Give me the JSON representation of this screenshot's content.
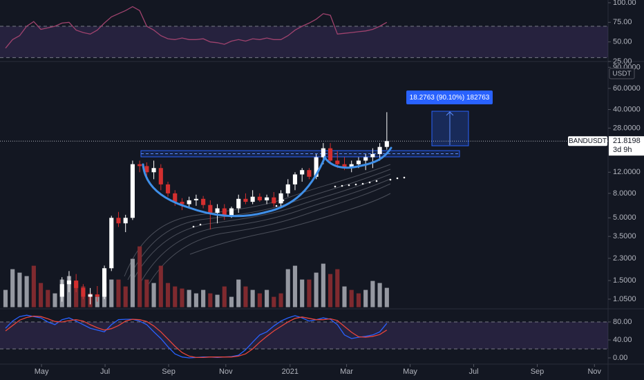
{
  "chart_data": [
    {
      "type": "line",
      "xlim": [
        -0.78,
        85.33
      ],
      "ylim": [
        25,
        103.5
      ],
      "log_scale": false,
      "yticks": [
        {
          "value": 100,
          "label": "100.00"
        },
        {
          "value": 75,
          "label": "75.00"
        },
        {
          "value": 50,
          "label": "50.00"
        },
        {
          "value": 25,
          "label": "25.00"
        }
      ],
      "bands": [
        30,
        70
      ],
      "band_color": "#7e57c2",
      "x": [
        0,
        1,
        2,
        3,
        4,
        5,
        6,
        7,
        8,
        9,
        10,
        11,
        12,
        13,
        14,
        15,
        16,
        17,
        18,
        19,
        20,
        21,
        22,
        23,
        24,
        25,
        26,
        27,
        28,
        29,
        30,
        31,
        32,
        33,
        34,
        35,
        36,
        37,
        38,
        39,
        40,
        41,
        42,
        43,
        44,
        45,
        46,
        47,
        48,
        49,
        50,
        51,
        52,
        53,
        54
      ],
      "series": [
        {
          "color": "#a0436e",
          "values": [
            42,
            53,
            58,
            70,
            76,
            66,
            68,
            70,
            74,
            75,
            65,
            62,
            60,
            65,
            74,
            82,
            86,
            90,
            95,
            90,
            70,
            65,
            58,
            54,
            53,
            55,
            53,
            53,
            54,
            50,
            49,
            47,
            51,
            53,
            51,
            54,
            53,
            55,
            53,
            53,
            58,
            65,
            70,
            74,
            79,
            86,
            84,
            60,
            61,
            62,
            63,
            64,
            66,
            70,
            75
          ]
        }
      ]
    },
    {
      "type": "candlestick",
      "xlim": [
        -0.78,
        85.33
      ],
      "ylim": [
        0.9,
        100
      ],
      "log_scale": true,
      "yticks": [
        {
          "value": 90,
          "label": "90.0000"
        },
        {
          "value": 60,
          "label": "60.0000"
        },
        {
          "value": 40,
          "label": "40.0000"
        },
        {
          "value": 28,
          "label": "28.0000"
        },
        {
          "value": 12,
          "label": "12.0000"
        },
        {
          "value": 8,
          "label": "8.0000"
        },
        {
          "value": 5,
          "label": "5.0000"
        },
        {
          "value": 3.5,
          "label": "3.5000"
        },
        {
          "value": 2.3,
          "label": "2.3000"
        },
        {
          "value": 1.5,
          "label": "1.5000"
        },
        {
          "value": 1.05,
          "label": "1.0500"
        }
      ],
      "currency": "USDT",
      "symbol": "BANDUSDT",
      "last_price": 21.8198,
      "countdown": "3d 9h",
      "annotations": [
        "18.2763 (90.10%) 182763"
      ],
      "up_color": "#ffffff",
      "down_color": "#d32f2f",
      "x": [
        0,
        1,
        2,
        3,
        4,
        5,
        6,
        7,
        8,
        9,
        10,
        11,
        12,
        13,
        14,
        15,
        16,
        17,
        18,
        19,
        20,
        21,
        22,
        23,
        24,
        25,
        26,
        27,
        28,
        29,
        30,
        31,
        32,
        33,
        34,
        35,
        36,
        37,
        38,
        39,
        40,
        41,
        42,
        43,
        44,
        45,
        46,
        47,
        48,
        49,
        50,
        51,
        52,
        53,
        54
      ],
      "open": [
        null,
        null,
        null,
        null,
        null,
        null,
        null,
        null,
        1.1,
        1.4,
        1.5,
        1.3,
        1.1,
        1.15,
        1.1,
        1.9,
        5.0,
        4.5,
        5.0,
        14,
        13.5,
        12,
        13,
        9.5,
        8,
        6.8,
        6.5,
        7,
        7.2,
        6.4,
        5.5,
        6,
        5.2,
        6,
        7.2,
        6.8,
        7.5,
        7.0,
        7.4,
        6.6,
        8,
        9.5,
        11.5,
        12.5,
        11,
        16,
        19,
        15,
        14,
        13,
        14,
        15,
        16,
        17,
        19.5
      ],
      "high": [
        null,
        null,
        null,
        null,
        null,
        null,
        null,
        null,
        1.6,
        1.8,
        1.7,
        1.4,
        1.3,
        1.35,
        2.0,
        5.2,
        5.6,
        5.3,
        15,
        15,
        14.5,
        15,
        14,
        10,
        8.5,
        7.3,
        7.5,
        7.8,
        7.6,
        7,
        6.5,
        6.5,
        6.2,
        7.8,
        8,
        8.5,
        8,
        7.8,
        8.2,
        8.5,
        10.5,
        12,
        13,
        13,
        17,
        21,
        21,
        18,
        16,
        15,
        16,
        17,
        19,
        21,
        38
      ],
      "low": [
        null,
        null,
        null,
        null,
        null,
        null,
        null,
        null,
        1.0,
        1.2,
        1.2,
        1.05,
        0.95,
        1.0,
        1.05,
        1.8,
        4.2,
        3.8,
        4.8,
        12,
        10.5,
        10.5,
        8.5,
        7.5,
        6.3,
        5.8,
        6,
        6.3,
        6,
        4,
        4.5,
        4.8,
        5,
        5.5,
        6.5,
        6.5,
        6.8,
        6.5,
        6.2,
        6,
        7.5,
        8.5,
        10,
        10.5,
        10.5,
        14,
        14,
        13,
        12.5,
        12,
        13,
        12.5,
        13,
        15,
        18.5
      ],
      "close": [
        null,
        null,
        null,
        null,
        null,
        null,
        null,
        null,
        1.4,
        1.5,
        1.3,
        1.1,
        1.15,
        1.1,
        1.9,
        5.0,
        4.5,
        5.0,
        14,
        13.5,
        12,
        13,
        9.5,
        8,
        6.8,
        6.5,
        7,
        7.2,
        6.4,
        5.5,
        6,
        5.2,
        6.0,
        7.2,
        6.8,
        7.5,
        7.0,
        7.4,
        6.6,
        8,
        9.5,
        11.5,
        12.5,
        11,
        16,
        19,
        15,
        14,
        13,
        14,
        15,
        16,
        17,
        19.5,
        21.8198
      ],
      "volume": [
        25,
        55,
        50,
        45,
        60,
        35,
        25,
        20,
        40,
        45,
        35,
        30,
        20,
        15,
        35,
        40,
        40,
        30,
        70,
        88,
        40,
        35,
        60,
        35,
        30,
        27,
        25,
        20,
        25,
        20,
        18,
        30,
        15,
        40,
        30,
        25,
        20,
        25,
        15,
        20,
        55,
        60,
        40,
        40,
        50,
        63,
        48,
        55,
        30,
        25,
        20,
        25,
        38,
        35,
        28
      ],
      "volume_colors": [
        "#9598a1",
        "#9598a1",
        "#9598a1",
        "#9598a1",
        "#7f2a2f",
        "#7f2a2f",
        "#7f2a2f",
        "#9598a1",
        "#9598a1",
        "#9598a1",
        "#7f2a2f",
        "#7f2a2f",
        "#7f2a2f",
        "#9598a1",
        "#9598a1",
        "#9598a1",
        "#7f2a2f",
        "#7f2a2f",
        "#9598a1",
        "#7f2a2f",
        "#7f2a2f",
        "#9598a1",
        "#7f2a2f",
        "#7f2a2f",
        "#7f2a2f",
        "#7f2a2f",
        "#9598a1",
        "#9598a1",
        "#9598a1",
        "#7f2a2f",
        "#9598a1",
        "#7f2a2f",
        "#9598a1",
        "#9598a1",
        "#7f2a2f",
        "#9598a1",
        "#7f2a2f",
        "#9598a1",
        "#7f2a2f",
        "#7f2a2f",
        "#9598a1",
        "#9598a1",
        "#9598a1",
        "#7f2a2f",
        "#9598a1",
        "#9598a1",
        "#7f2a2f",
        "#7f2a2f",
        "#9598a1",
        "#7f2a2f",
        "#7f2a2f",
        "#9598a1",
        "#9598a1",
        "#9598a1",
        "#9598a1"
      ]
    },
    {
      "type": "line",
      "xlim": [
        -0.78,
        85.33
      ],
      "ylim": [
        -12.3,
        104.6
      ],
      "log_scale": false,
      "yticks": [
        {
          "value": 80,
          "label": "80.00"
        },
        {
          "value": 40,
          "label": "40.00"
        },
        {
          "value": 0,
          "label": "0.00"
        }
      ],
      "bands": [
        20,
        80
      ],
      "band_color": "#7e57c2",
      "xticks": [
        {
          "value": 5.1,
          "label": "May"
        },
        {
          "value": 14.1,
          "label": "Jul"
        },
        {
          "value": 23.1,
          "label": "Sep"
        },
        {
          "value": 31.2,
          "label": "Nov"
        },
        {
          "value": 40.3,
          "label": "2021"
        },
        {
          "value": 48.3,
          "label": "Mar"
        },
        {
          "value": 57.3,
          "label": "May"
        },
        {
          "value": 66.3,
          "label": "Jul"
        },
        {
          "value": 75.3,
          "label": "Sep"
        },
        {
          "value": 83.4,
          "label": "Nov"
        }
      ],
      "x": [
        0,
        1,
        2,
        3,
        4,
        5,
        6,
        7,
        8,
        9,
        10,
        11,
        12,
        13,
        14,
        15,
        16,
        17,
        18,
        19,
        20,
        21,
        22,
        23,
        24,
        25,
        26,
        27,
        28,
        29,
        30,
        31,
        32,
        33,
        34,
        35,
        36,
        37,
        38,
        39,
        40,
        41,
        42,
        43,
        44,
        45,
        46,
        47,
        48,
        49,
        50,
        51,
        52,
        53,
        54
      ],
      "series": [
        {
          "color": "#2962ff",
          "values": [
            66,
            82,
            92,
            95,
            92,
            89,
            80,
            74,
            85,
            89,
            82,
            74,
            66,
            62,
            58,
            74,
            85,
            86,
            86,
            82,
            74,
            58,
            43,
            25,
            9,
            2,
            0,
            1,
            2,
            2,
            1,
            2,
            3,
            6,
            18,
            35,
            51,
            58,
            71,
            82,
            89,
            94,
            89,
            82,
            85,
            89,
            86,
            74,
            51,
            43,
            46,
            48,
            51,
            58,
            77
          ]
        },
        {
          "color": "#e8453c",
          "values": [
            60,
            72,
            84,
            90,
            93,
            92,
            87,
            81,
            80,
            83,
            85,
            82,
            74,
            67,
            62,
            65,
            72,
            82,
            86,
            85,
            81,
            71,
            58,
            42,
            26,
            12,
            4,
            1,
            1,
            2,
            2,
            2,
            2,
            4,
            9,
            20,
            35,
            48,
            60,
            70,
            80,
            88,
            91,
            88,
            85,
            85,
            87,
            83,
            70,
            57,
            47,
            46,
            48,
            52,
            62
          ]
        }
      ]
    }
  ]
}
